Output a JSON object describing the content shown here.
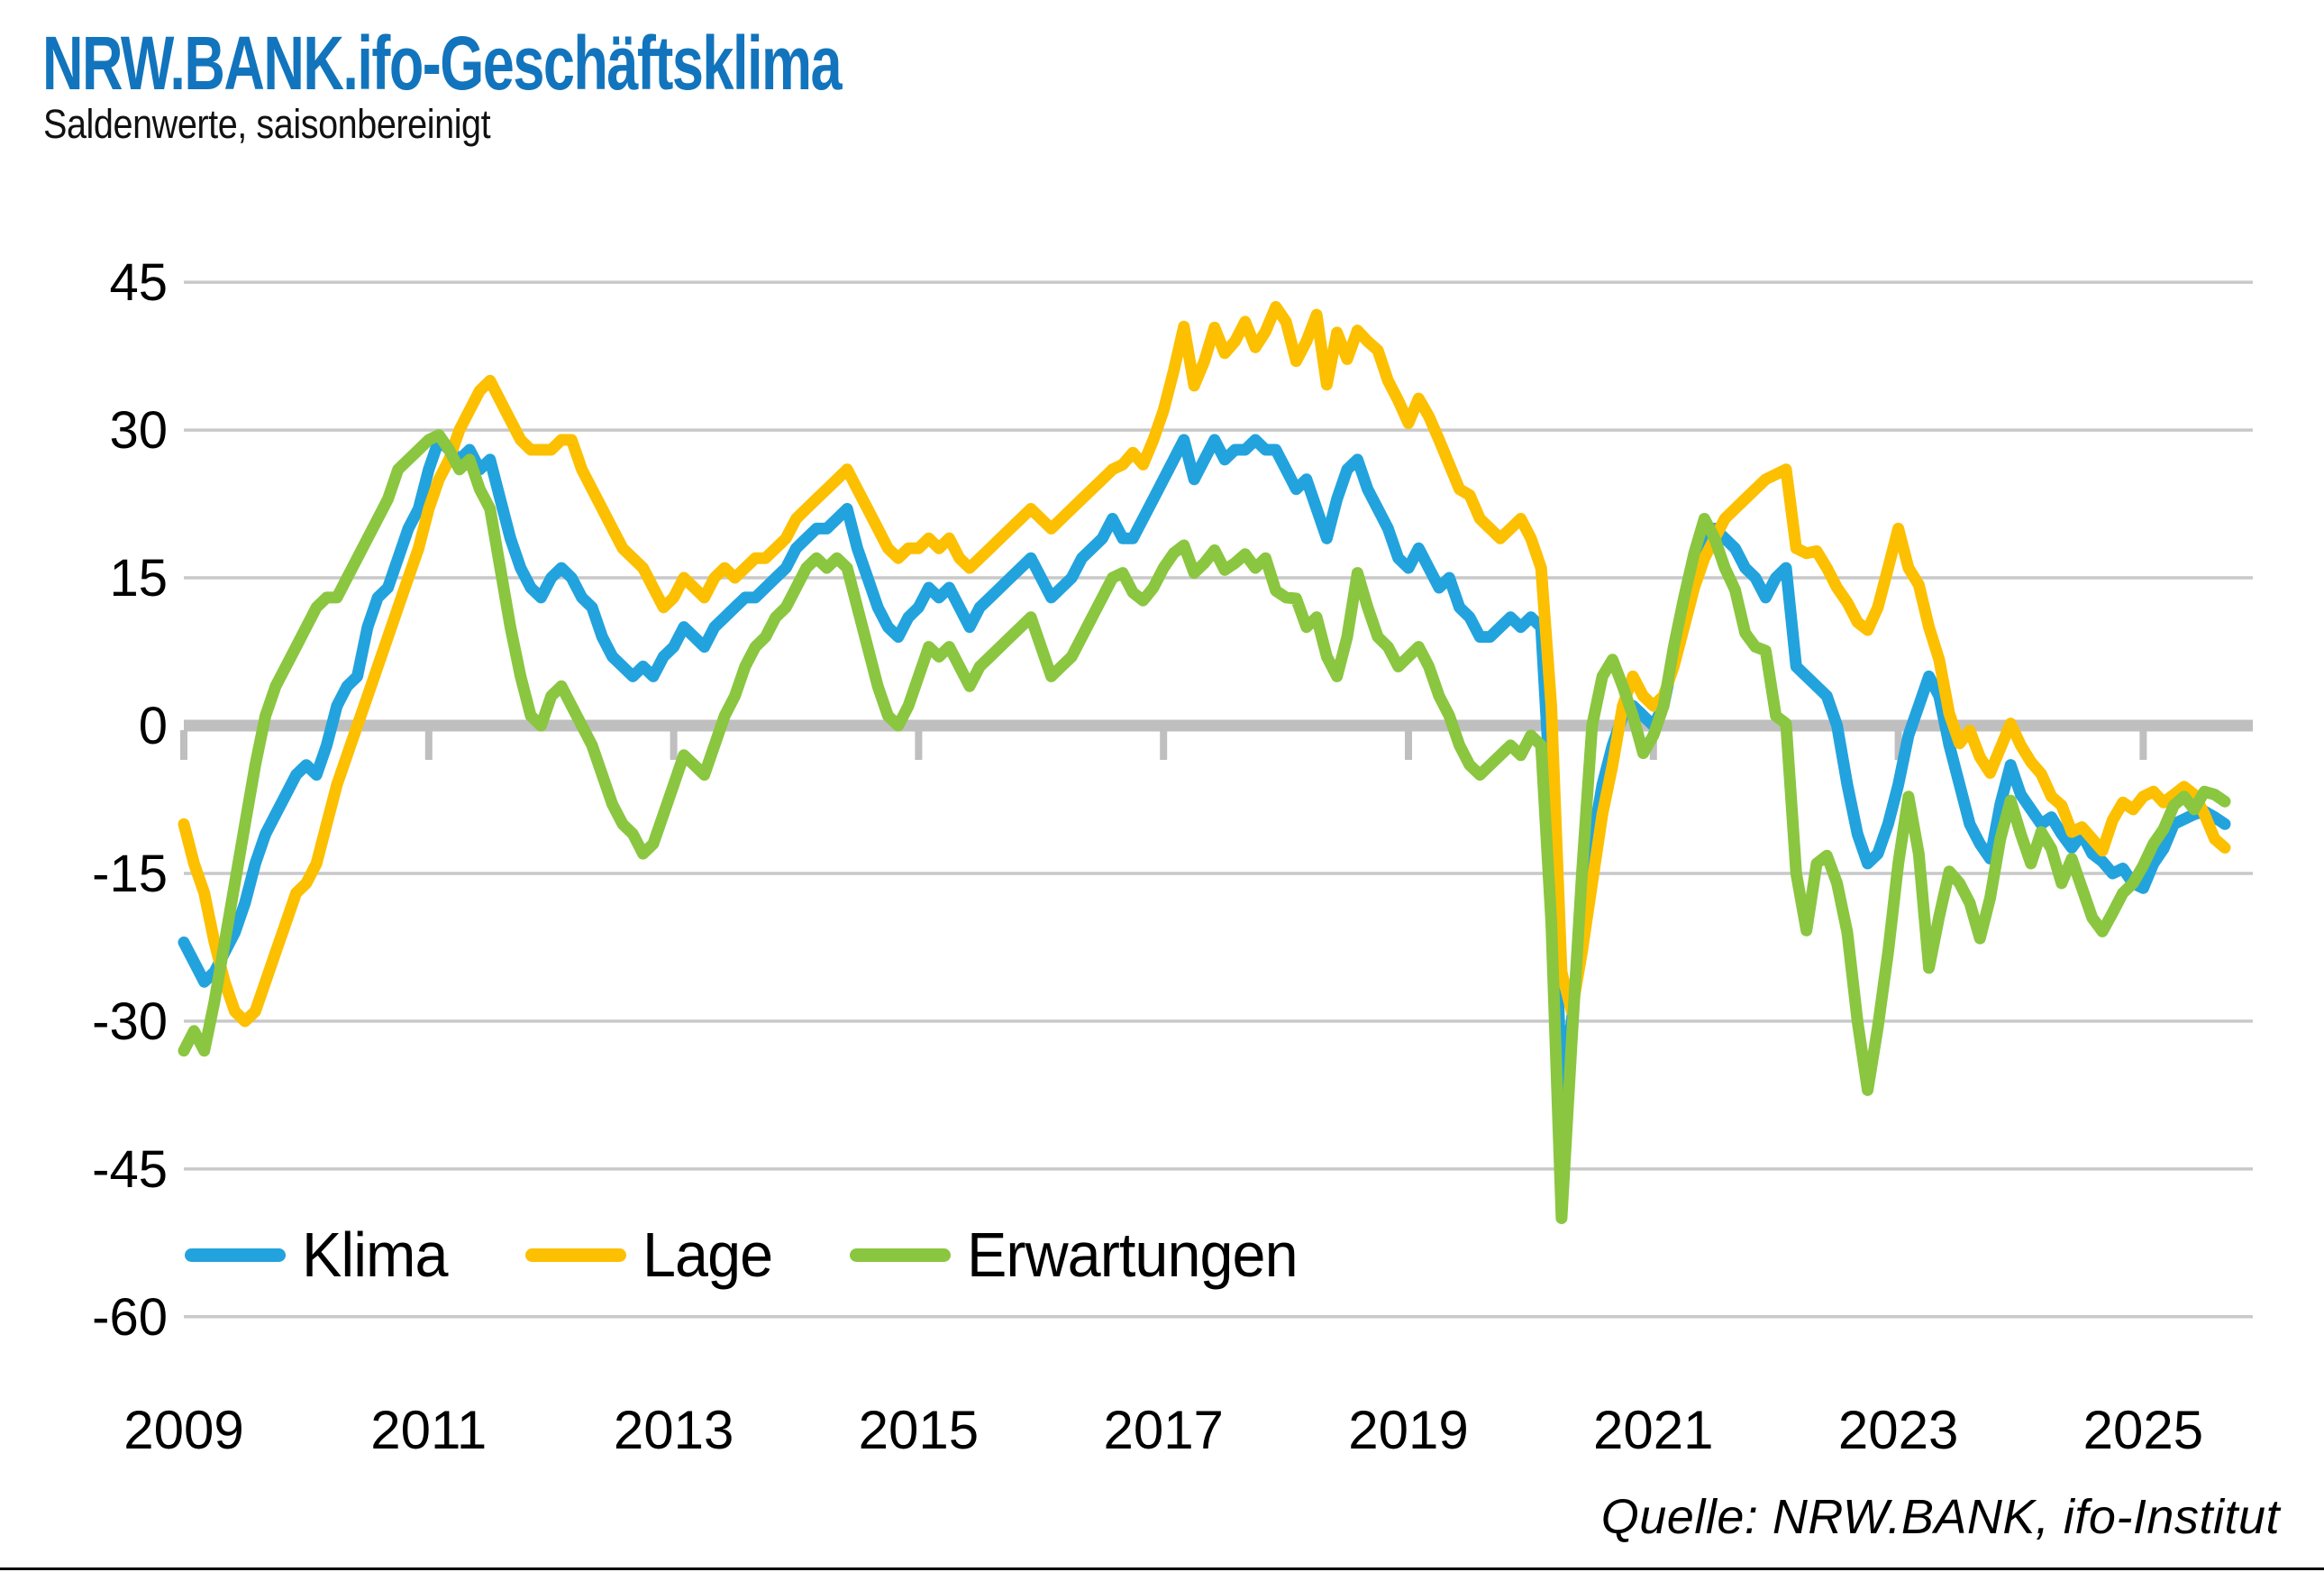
{
  "header": {
    "title": "NRW.BANK.ifo-Geschäftsklima",
    "subtitle": "Saldenwerte, saisonbereinigt"
  },
  "source": {
    "label": "Quelle: NRW.BANK, ifo-Institut"
  },
  "colors": {
    "title_blue": "#1274BC",
    "klima_blue": "#22A3DD",
    "lage_yellow": "#FCC000",
    "erwartungen_green": "#8AC640",
    "gridline_gray": "#C9C9C9",
    "zero_axis_gray": "#BFBFBF",
    "text_black": "#000000"
  },
  "chart_data": {
    "type": "line",
    "title": "NRW.BANK.ifo-Geschäftsklima",
    "subtitle": "Saldenwerte, saisonbereinigt",
    "xlabel": "",
    "ylabel": "",
    "x_start": "2009-01",
    "x_end": "2025-09",
    "frequency": "monthly",
    "ylim": [
      -60,
      45
    ],
    "y_ticks": [
      45,
      30,
      15,
      0,
      -15,
      -30,
      -45,
      -60
    ],
    "x_tick_labels": [
      "2009",
      "2011",
      "2013",
      "2015",
      "2017",
      "2019",
      "2021",
      "2023",
      "2025"
    ],
    "grid": "horizontal",
    "legend_position": "inside-bottom-left",
    "source": "Quelle: NRW.BANK, ifo-Institut",
    "series": [
      {
        "name": "Klima",
        "color": "#22A3DD",
        "values": [
          -22,
          -24,
          -26,
          -25,
          -23,
          -21,
          -18,
          -14,
          -11,
          -9,
          -7,
          -5,
          -4,
          -5,
          -2,
          2,
          4,
          5,
          10,
          13,
          14,
          17,
          20,
          22,
          26,
          29,
          28,
          27,
          28,
          26,
          27,
          23,
          19,
          16,
          14,
          13,
          15,
          16,
          15,
          13,
          12,
          9,
          7,
          6,
          5,
          6,
          5,
          7,
          8,
          10,
          9,
          8,
          10,
          11,
          12,
          13,
          13,
          14,
          15,
          16,
          18,
          19,
          20,
          20,
          21,
          22,
          18,
          15,
          12,
          10,
          9,
          11,
          12,
          14,
          13,
          14,
          12,
          10,
          12,
          13,
          14,
          15,
          16,
          17,
          15,
          13,
          14,
          15,
          17,
          18,
          19,
          21,
          19,
          19,
          21,
          23,
          25,
          27,
          29,
          25,
          27,
          29,
          27,
          28,
          28,
          29,
          28,
          28,
          26,
          24,
          25,
          22,
          19,
          23,
          26,
          27,
          24,
          22,
          20,
          17,
          16,
          18,
          16,
          14,
          15,
          12,
          11,
          9,
          9,
          10,
          11,
          10,
          11,
          10,
          -8,
          -37,
          -30,
          -20,
          -12,
          -6,
          -2,
          1,
          2,
          1,
          0,
          2,
          7,
          12,
          15,
          18,
          20,
          19,
          18,
          16,
          15,
          13,
          15,
          16,
          6,
          5,
          4,
          3,
          0,
          -6,
          -11,
          -14,
          -13,
          -10,
          -6,
          -1,
          2,
          5,
          3,
          -2,
          -6,
          -10,
          -12,
          -13.5,
          -8,
          -4,
          -7,
          -8.5,
          -10,
          -9.3,
          -11,
          -12.4,
          -11,
          -13,
          -13.8,
          -15,
          -14.5,
          -16,
          -16.5,
          -14,
          -12.5,
          -10,
          -9.5,
          -9,
          -8.7,
          -9.3,
          -10
        ]
      },
      {
        "name": "Lage",
        "color": "#FCC000",
        "values": [
          -10,
          -14,
          -17,
          -22,
          -26,
          -29,
          -30,
          -29,
          -26,
          -23,
          -20,
          -17,
          -16,
          -14,
          -10,
          -6,
          -3,
          0,
          3,
          6,
          9,
          12,
          15,
          18,
          22,
          25,
          27,
          30,
          32,
          34,
          35,
          33,
          31,
          29,
          28,
          28,
          28,
          29,
          29,
          26,
          24,
          22,
          20,
          18,
          17,
          16,
          14,
          12,
          13,
          15,
          14,
          13,
          15,
          16,
          15,
          16,
          17,
          17,
          18,
          19,
          21,
          22,
          23,
          24,
          25,
          26,
          24,
          22,
          20,
          18,
          17,
          18,
          18,
          19,
          18,
          19,
          17,
          16,
          17,
          18,
          19,
          20,
          21,
          22,
          21,
          20,
          21,
          22,
          23,
          24,
          25,
          26,
          26.5,
          27.7,
          26.5,
          29,
          32,
          36,
          40.5,
          34.5,
          37,
          40.4,
          37.8,
          39,
          41,
          38.4,
          40,
          42.5,
          41,
          37,
          39,
          41.7,
          34.6,
          39.9,
          37.2,
          40.1,
          39,
          38.1,
          35,
          33,
          30.7,
          33.2,
          31.4,
          29,
          26.5,
          24,
          23.4,
          21,
          20,
          19,
          20,
          21,
          19,
          16,
          2,
          -25,
          -29,
          -23,
          -16,
          -9,
          -4,
          2,
          5,
          3,
          2,
          3,
          6,
          10,
          14,
          17,
          19,
          21,
          22,
          23,
          24,
          25,
          25.5,
          26,
          18,
          17.5,
          17.7,
          16,
          14,
          12.5,
          10.5,
          9.7,
          12,
          16,
          20,
          16,
          14.3,
          10,
          6.7,
          1.2,
          -1.8,
          -0.5,
          -3.2,
          -4.8,
          -2.3,
          0.2,
          -2,
          -3.7,
          -4.9,
          -7.2,
          -8.1,
          -10.8,
          -10.3,
          -11.5,
          -12.7,
          -9.6,
          -7.8,
          -8.5,
          -7.2,
          -6.7,
          -7.8,
          -7,
          -6.2,
          -7,
          -9,
          -11.5,
          -12.4
        ]
      },
      {
        "name": "Erwartungen",
        "color": "#8AC640",
        "values": [
          -33,
          -31,
          -33,
          -28,
          -22,
          -16,
          -10,
          -4,
          1,
          4,
          6,
          8,
          10,
          12,
          13,
          13,
          15,
          17,
          19,
          21,
          23,
          26,
          27,
          28,
          29,
          29.5,
          28,
          26,
          27,
          24,
          22,
          16,
          10,
          5,
          1,
          0,
          3,
          4,
          2,
          0,
          -2,
          -5,
          -8,
          -10,
          -11,
          -13,
          -12,
          -9,
          -6,
          -3,
          -4,
          -5,
          -2,
          1,
          3,
          6,
          8,
          9,
          11,
          12,
          14,
          16,
          17,
          16,
          17,
          16,
          12,
          8,
          4,
          1,
          0,
          2,
          5,
          8,
          7,
          8,
          6,
          4,
          6,
          7,
          8,
          9,
          10,
          11,
          8,
          5,
          6,
          7,
          9,
          11,
          13,
          15,
          15.5,
          13.5,
          12.7,
          14,
          16,
          17.5,
          18.3,
          15.5,
          16.5,
          17.8,
          15.8,
          16.5,
          17.4,
          16,
          17,
          13.7,
          13,
          12.9,
          10,
          11,
          7,
          5,
          9,
          15.5,
          12,
          9,
          8,
          6,
          7,
          8,
          6,
          3,
          1,
          -2,
          -4,
          -5,
          -4,
          -3,
          -2,
          -3,
          -1,
          -2,
          -20,
          -50,
          -32,
          -15,
          0,
          5,
          6.7,
          4,
          1,
          -2.8,
          -1,
          2,
          8,
          13,
          17.5,
          21,
          19,
          16,
          13.8,
          9.4,
          8,
          7.6,
          1,
          0.2,
          -15,
          -20.8,
          -14,
          -13.2,
          -16,
          -21,
          -30,
          -37,
          -30.6,
          -23,
          -14,
          -7.2,
          -13,
          -24.6,
          -19.4,
          -14.8,
          -16,
          -18,
          -21.6,
          -17.5,
          -11.5,
          -7.6,
          -11,
          -14,
          -10.8,
          -12.5,
          -16,
          -13.5,
          -16.5,
          -19.5,
          -20.9,
          -19,
          -17,
          -16,
          -14.2,
          -12,
          -10.5,
          -8.1,
          -7.2,
          -8.5,
          -6.7,
          -7,
          -7.7
        ]
      }
    ]
  }
}
